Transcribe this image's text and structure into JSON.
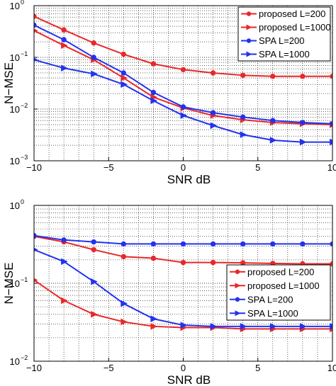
{
  "chart_data": [
    {
      "type": "line",
      "xlabel": "SNR dB",
      "ylabel": "N−MSE",
      "yscale": "log",
      "xlim": [
        -10,
        10
      ],
      "ylim": [
        0.001,
        1
      ],
      "x_ticks": [
        "−10",
        "−5",
        "0",
        "5",
        "10"
      ],
      "y_ticks": [
        "10",
        "10",
        "10",
        "10"
      ],
      "y_tick_exponents": [
        "0",
        "−1",
        "−2",
        "−3"
      ],
      "grid": true,
      "legend_position": "top-right",
      "x": [
        -10,
        -8,
        -6,
        -4,
        -2,
        0,
        2,
        4,
        6,
        8,
        10
      ],
      "series": [
        {
          "name": "proposed L=200",
          "color": "#e8282a",
          "marker": "circle",
          "values": [
            0.62,
            0.34,
            0.19,
            0.115,
            0.075,
            0.058,
            0.05,
            0.045,
            0.043,
            0.043,
            0.043
          ]
        },
        {
          "name": "proposed L=1000",
          "color": "#e8282a",
          "marker": "triangle-right",
          "values": [
            0.33,
            0.17,
            0.09,
            0.04,
            0.017,
            0.0105,
            0.0075,
            0.0062,
            0.0055,
            0.0052,
            0.005
          ]
        },
        {
          "name": "SPA L=200",
          "color": "#2233ee",
          "marker": "circle",
          "values": [
            0.42,
            0.22,
            0.1,
            0.05,
            0.021,
            0.011,
            0.0085,
            0.007,
            0.006,
            0.0055,
            0.0052
          ]
        },
        {
          "name": "SPA L=1000",
          "color": "#2233ee",
          "marker": "triangle-right",
          "values": [
            0.09,
            0.062,
            0.048,
            0.03,
            0.0145,
            0.0075,
            0.0048,
            0.0032,
            0.0025,
            0.0023,
            0.0023
          ]
        }
      ]
    },
    {
      "type": "line",
      "xlabel": "SNR dB",
      "ylabel": "N−MSE",
      "yscale": "log",
      "xlim": [
        -10,
        10
      ],
      "ylim": [
        0.01,
        1
      ],
      "x_ticks": [
        "−10",
        "−5",
        "0",
        "5",
        "10"
      ],
      "y_ticks": [
        "10",
        "10",
        "10"
      ],
      "y_tick_exponents": [
        "0",
        "−1",
        "−2"
      ],
      "grid": true,
      "legend_position": "bottom-right",
      "x": [
        -10,
        -8,
        -6,
        -4,
        -2,
        0,
        2,
        4,
        6,
        8,
        10
      ],
      "series": [
        {
          "name": "proposed L=200",
          "color": "#e8282a",
          "marker": "circle",
          "values": [
            0.4,
            0.34,
            0.27,
            0.22,
            0.21,
            0.185,
            0.185,
            0.183,
            0.18,
            0.178,
            0.178
          ]
        },
        {
          "name": "proposed L=1000",
          "color": "#e8282a",
          "marker": "triangle-right",
          "values": [
            0.11,
            0.06,
            0.04,
            0.032,
            0.028,
            0.027,
            0.027,
            0.026,
            0.026,
            0.026,
            0.026
          ]
        },
        {
          "name": "SPA L=200",
          "color": "#2233ee",
          "marker": "circle",
          "values": [
            0.41,
            0.36,
            0.34,
            0.32,
            0.32,
            0.32,
            0.32,
            0.32,
            0.32,
            0.32,
            0.32
          ]
        },
        {
          "name": "SPA L=1000",
          "color": "#2233ee",
          "marker": "triangle-right",
          "values": [
            0.27,
            0.19,
            0.105,
            0.055,
            0.035,
            0.029,
            0.028,
            0.028,
            0.028,
            0.028,
            0.028
          ]
        }
      ]
    }
  ]
}
